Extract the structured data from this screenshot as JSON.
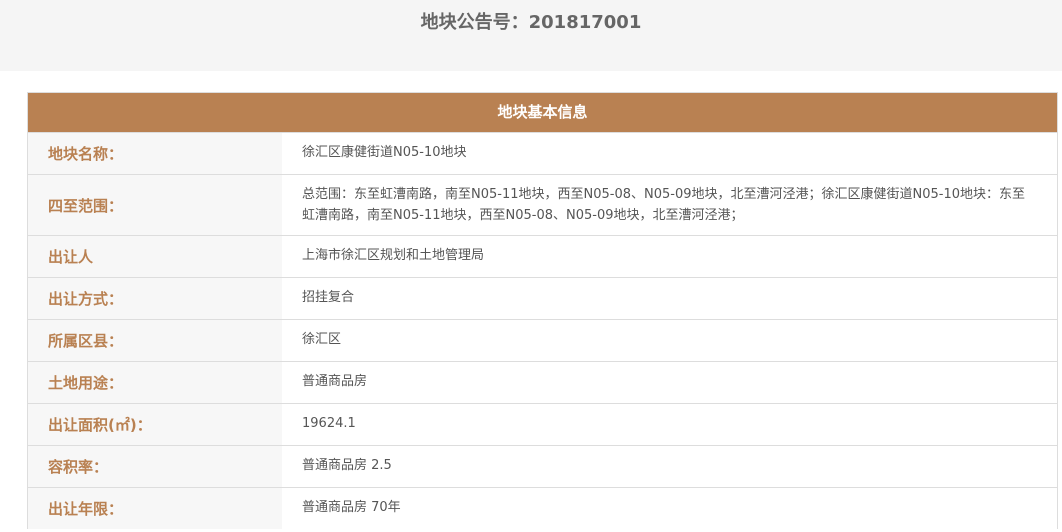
{
  "title": "地块公告号：201817001",
  "section_title": "地块基本信息",
  "rows": [
    {
      "label": "地块名称：",
      "value": "徐汇区康健街道N05-10地块"
    },
    {
      "label": "四至范围：",
      "value": "总范围：东至虹漕南路，南至N05-11地块，西至N05-08、N05-09地块，北至漕河泾港；徐汇区康健街道N05-10地块：东至虹漕南路，南至N05-11地块，西至N05-08、N05-09地块，北至漕河泾港；"
    },
    {
      "label": "出让人",
      "value": "上海市徐汇区规划和土地管理局"
    },
    {
      "label": "出让方式：",
      "value": "招挂复合"
    },
    {
      "label": "所属区县：",
      "value": "徐汇区"
    },
    {
      "label": "土地用途：",
      "value": "普通商品房"
    },
    {
      "label": "出让面积(㎡)：",
      "value": "19624.1"
    },
    {
      "label": "容积率：",
      "value": "普通商品房 2.5"
    },
    {
      "label": "出让年限：",
      "value": "普通商品房 70年"
    }
  ],
  "colors": {
    "accent": "#b98152"
  }
}
